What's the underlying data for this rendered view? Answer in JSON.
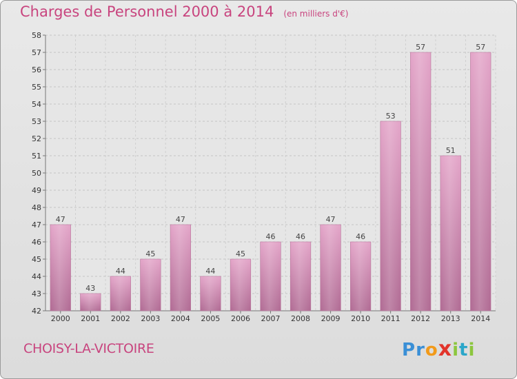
{
  "title": "Charges de Personnel 2000 à 2014",
  "unit": "(en milliers d'€)",
  "commune": "CHOISY-LA-VICTOIRE",
  "logo": {
    "letters": [
      "P",
      "r",
      "o",
      "x",
      "i",
      "t",
      "i"
    ],
    "colors": [
      "#3a8fd6",
      "#3a8fd6",
      "#f29a1a",
      "#e2342b",
      "#8cc63e",
      "#2aa6c9",
      "#8cc63e"
    ]
  },
  "colors": {
    "bar": "#cf8ab0",
    "title": "#c8447e",
    "grid": "#c8c8c8"
  },
  "chart_data": {
    "type": "bar",
    "categories": [
      "2000",
      "2001",
      "2002",
      "2003",
      "2004",
      "2005",
      "2006",
      "2007",
      "2008",
      "2009",
      "2010",
      "2011",
      "2012",
      "2013",
      "2014"
    ],
    "values": [
      47,
      43,
      44,
      45,
      47,
      44,
      45,
      46,
      46,
      47,
      46,
      53,
      57,
      51,
      57
    ],
    "ylim": [
      42,
      58
    ],
    "yticks": [
      "42",
      "43",
      "44",
      "45",
      "46",
      "47",
      "48",
      "49",
      "50",
      "51",
      "52",
      "53",
      "54",
      "55",
      "56",
      "57",
      "58"
    ],
    "grid": true
  }
}
